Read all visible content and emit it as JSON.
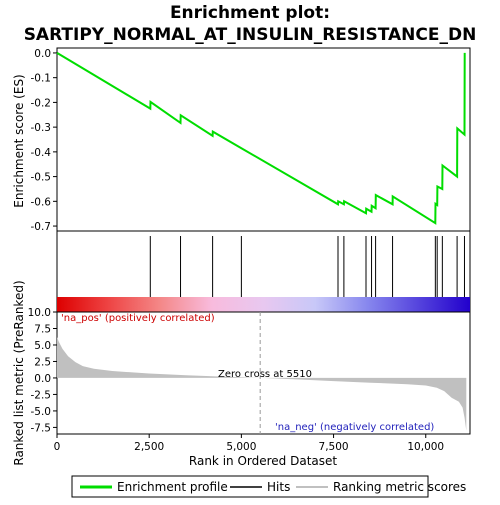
{
  "chart_data": {
    "type": "line",
    "title": "Enrichment plot:\nSARTIPY_NORMAL_AT_INSULIN_RESISTANCE_DN",
    "title_lines": [
      "Enrichment plot:",
      "SARTIPY_NORMAL_AT_INSULIN_RESISTANCE_DN"
    ],
    "xlabel": "Rank in Ordered Dataset",
    "top_panel": {
      "ylabel": "Enrichment score (ES)",
      "ylim": [
        -0.72,
        0.02
      ],
      "yticks": [
        0.0,
        -0.1,
        -0.2,
        -0.3,
        -0.4,
        -0.5,
        -0.6,
        -0.7
      ],
      "ytick_labels": [
        "0.0",
        "-0.1",
        "-0.2",
        "-0.3",
        "-0.4",
        "-0.5",
        "-0.6",
        "-0.7"
      ],
      "grid": false,
      "series": [
        {
          "name": "Enrichment profile",
          "color": "#00dd00",
          "x": [
            0,
            2530,
            2535,
            3350,
            3355,
            4220,
            4225,
            5000,
            7620,
            7625,
            7780,
            7785,
            8380,
            8385,
            8530,
            8535,
            8640,
            8645,
            9100,
            9105,
            10260,
            10265,
            10310,
            10315,
            10450,
            10455,
            10850,
            10855,
            11050,
            11055
          ],
          "y": [
            0.0,
            -0.225,
            -0.198,
            -0.283,
            -0.252,
            -0.335,
            -0.318,
            -0.385,
            -0.612,
            -0.6,
            -0.612,
            -0.6,
            -0.648,
            -0.63,
            -0.642,
            -0.618,
            -0.628,
            -0.575,
            -0.612,
            -0.58,
            -0.688,
            -0.61,
            -0.615,
            -0.54,
            -0.55,
            -0.455,
            -0.5,
            -0.305,
            -0.33,
            0.0
          ]
        }
      ]
    },
    "hits": {
      "name": "Hits",
      "color": "#000000",
      "x": [
        2530,
        3350,
        4220,
        5000,
        7620,
        7780,
        8380,
        8530,
        8640,
        9100,
        10260,
        10310,
        10450,
        10850,
        11050
      ]
    },
    "gradient_bar": {
      "stops": [
        "#dd0000",
        "#ee4444",
        "#f48888",
        "#f8bbdd",
        "#e8c8f0",
        "#c8c8f8",
        "#8888ee",
        "#5544dd",
        "#2200cc"
      ]
    },
    "bottom_panel": {
      "ylabel": "Ranked list metric (PreRanked)",
      "ylim": [
        -8.5,
        10.0
      ],
      "yticks": [
        10.0,
        7.5,
        5.0,
        2.5,
        0.0,
        -2.5,
        -5.0,
        -7.5
      ],
      "ytick_labels": [
        "10.0",
        "7.5",
        "5.0",
        "2.5",
        "0.0",
        "-2.5",
        "-5.0",
        "-7.5"
      ],
      "series": [
        {
          "name": "Ranking metric scores",
          "color": "#c0c0c0",
          "x": [
            0,
            50,
            150,
            300,
            500,
            700,
            1000,
            1500,
            2000,
            2500,
            3500,
            4500,
            5510,
            6500,
            7500,
            8500,
            9500,
            10000,
            10300,
            10500,
            10700,
            10900,
            11000,
            11050,
            11100
          ],
          "y": [
            6.2,
            5.5,
            4.4,
            3.3,
            2.4,
            1.8,
            1.4,
            1.05,
            0.85,
            0.68,
            0.42,
            0.2,
            0.0,
            -0.22,
            -0.48,
            -0.72,
            -0.95,
            -1.15,
            -1.5,
            -2.0,
            -3.0,
            -3.6,
            -4.5,
            -6.0,
            -8.0
          ]
        }
      ],
      "annotations": [
        "'na_pos' (positively correlated)",
        "Zero cross at 5510",
        "'na_neg' (negatively correlated)"
      ],
      "zero_cross": 5510
    },
    "xlim": [
      0,
      11200
    ],
    "xticks": [
      0,
      2500,
      5000,
      7500,
      10000
    ],
    "xtick_labels": [
      "0",
      "2,500",
      "5,000",
      "7,500",
      "10,000"
    ],
    "legend": {
      "placement": "bottom",
      "entries": [
        "Enrichment profile",
        "Hits",
        "Ranking metric scores"
      ]
    }
  }
}
